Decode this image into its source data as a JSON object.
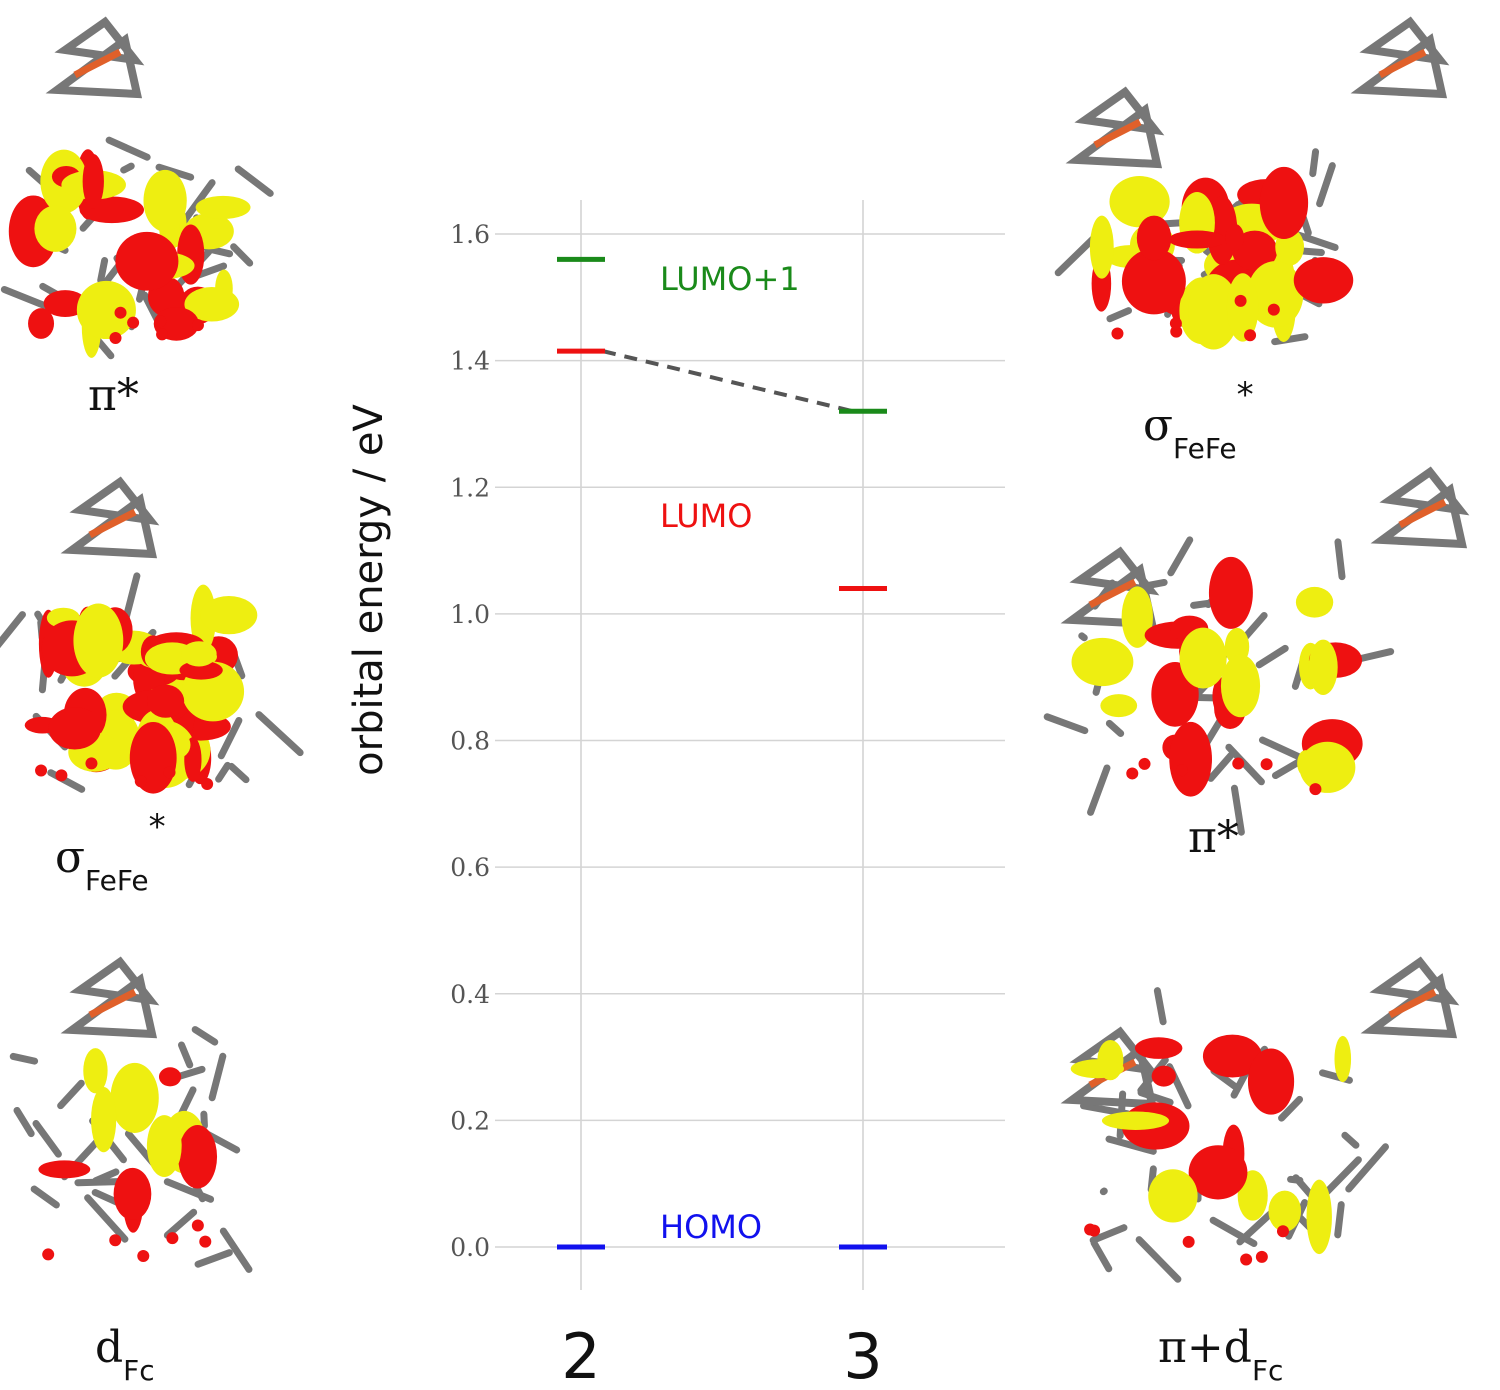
{
  "chart_data": {
    "type": "energy-level diagram",
    "ylabel": "orbital energy / eV",
    "xlabel": "",
    "categories": [
      "2",
      "3"
    ],
    "ylim": [
      -0.07,
      1.655
    ],
    "yticks": [
      "0.0",
      "0.2",
      "0.4",
      "0.6",
      "0.8",
      "1.0",
      "1.2",
      "1.4",
      "1.6"
    ],
    "grid": true,
    "series": [
      {
        "name": "LUMO+1",
        "color": "#1a8a1a",
        "values": [
          1.56,
          1.32
        ]
      },
      {
        "name": "LUMO",
        "color": "#ee1111",
        "values": [
          1.415,
          1.04
        ]
      },
      {
        "name": "HOMO",
        "color": "#1111ee",
        "values": [
          0.0,
          0.0
        ]
      }
    ],
    "connector": {
      "from": {
        "category": "2",
        "value": 1.415
      },
      "to": {
        "category": "3",
        "value": 1.32
      },
      "style": "dashed",
      "color": "#555555"
    }
  },
  "orbital_panels": {
    "left": [
      {
        "main": "π*",
        "sub": "",
        "sup": ""
      },
      {
        "main": "σ",
        "sub": "FeFe",
        "sup": "*"
      },
      {
        "main": "d",
        "sub": "Fc",
        "sup": ""
      }
    ],
    "right": [
      {
        "main": "σ",
        "sub": "FeFe",
        "sup": "*"
      },
      {
        "main": "π*",
        "sub": "",
        "sup": ""
      },
      {
        "main": "π+d",
        "sub": "Fc",
        "sup": ""
      }
    ]
  },
  "colors": {
    "lobe_positive": "#ee1111",
    "lobe_negative": "#eeee11",
    "bond": "#777777",
    "iron": "#e0602a"
  }
}
